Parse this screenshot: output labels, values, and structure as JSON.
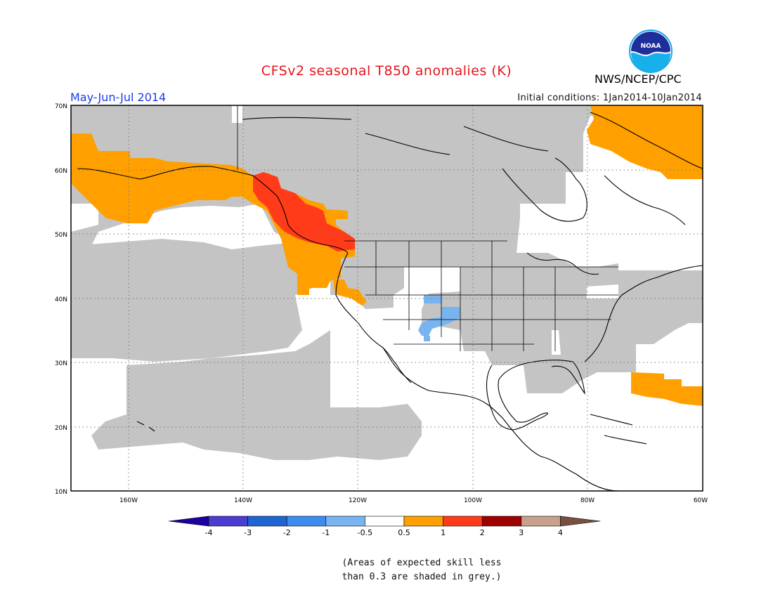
{
  "header": {
    "title": "CFSv2 seasonal T850 anomalies (K)",
    "period": "May-Jun-Jul 2014",
    "initial_conditions": "Initial conditions: 1Jan2014-10Jan2014",
    "agency": "NWS/NCEP/CPC",
    "logo_text": "NOAA"
  },
  "map": {
    "projection": "lat-lon",
    "lat_range": [
      10,
      70
    ],
    "lon_range": [
      -170,
      -60
    ],
    "lat_ticks": [
      "10N",
      "20N",
      "30N",
      "40N",
      "50N",
      "60N",
      "70N"
    ],
    "lon_ticks": [
      "160W",
      "140W",
      "120W",
      "100W",
      "80W",
      "60W"
    ],
    "grid": "dotted",
    "colors": {
      "skill_grey": "#c4c4c4",
      "anom_0p5_1": "#ffa000",
      "anom_1_2": "#ff3b1a",
      "anom_neg_0p5_neg_1": "#78b4f0"
    }
  },
  "legend": {
    "labels": [
      "-4",
      "-3",
      "-2",
      "-1",
      "-0.5",
      "0.5",
      "1",
      "2",
      "3",
      "4"
    ],
    "colors": [
      "#1e00a0",
      "#4b3cd2",
      "#1e64d2",
      "#3c8cf0",
      "#78b4f0",
      "#ffffff",
      "#ffa000",
      "#ff3b1a",
      "#a00000",
      "#c8a08c",
      "#785040"
    ]
  },
  "footnote": {
    "line1": "(Areas of expected skill less",
    "line2": "than 0.3 are shaded in grey.)"
  }
}
